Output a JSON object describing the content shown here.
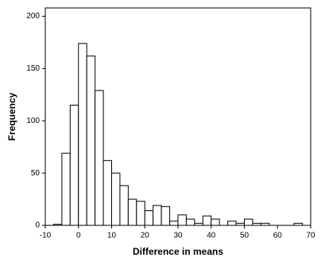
{
  "chart_data": {
    "type": "histogram",
    "x_label": "Difference in means",
    "y_label": "Frequency",
    "bins": [
      -7.5,
      -5,
      -2.5,
      0,
      2.5,
      5,
      7.5,
      10,
      12.5,
      15,
      17.5,
      20,
      22.5,
      25,
      27.5,
      30,
      32.5,
      35,
      37.5,
      40,
      42.5,
      45,
      47.5,
      50,
      52.5,
      55,
      57.5,
      60,
      62.5,
      65,
      67.5
    ],
    "values": [
      1,
      69,
      115,
      174,
      162,
      129,
      62,
      50,
      38,
      25,
      23,
      14,
      19,
      18,
      4,
      10,
      6,
      2,
      9,
      6,
      0,
      4,
      2,
      6,
      2,
      2,
      0,
      0,
      0,
      2
    ],
    "color": "#ffffff",
    "xlim": [
      -10,
      70
    ],
    "xticks": [
      -10,
      0,
      10,
      20,
      30,
      40,
      50,
      60,
      70
    ],
    "ylim": [
      0,
      208
    ],
    "yticks": [
      0,
      50,
      100,
      150,
      200
    ]
  }
}
